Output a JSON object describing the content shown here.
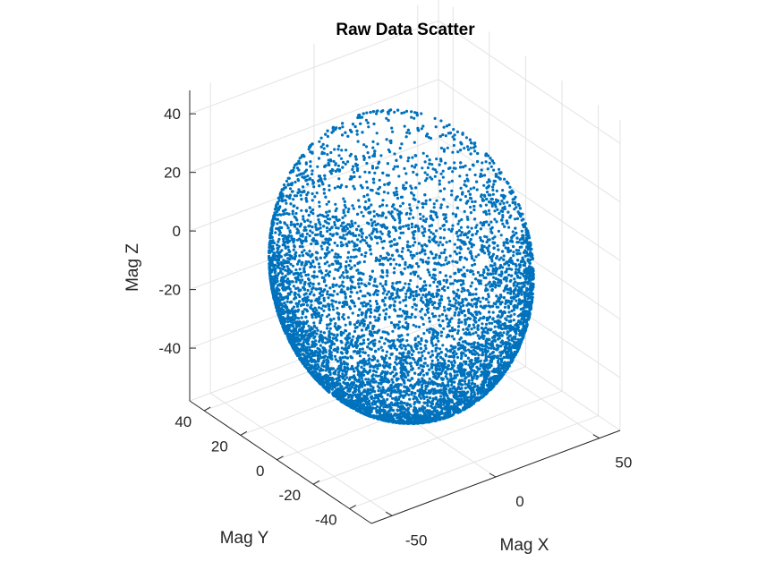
{
  "chart_data": {
    "type": "scatter",
    "subtype": "scatter3",
    "title": "Raw Data Scatter",
    "xlabel": "Mag X",
    "ylabel": "Mag Y",
    "zlabel": "Mag Z",
    "xlim": [
      -60,
      60
    ],
    "ylim": [
      -52,
      48
    ],
    "zlim": [
      -58,
      48
    ],
    "xticks": [
      -50,
      0,
      50
    ],
    "yticks": [
      -40,
      -20,
      0,
      20,
      40
    ],
    "zticks": [
      -40,
      -20,
      0,
      20,
      40
    ],
    "xtick_labels": [
      "-50",
      "0",
      "50"
    ],
    "ytick_labels": [
      "-40",
      "-20",
      "0",
      "20",
      "40"
    ],
    "ztick_labels": [
      "-40",
      "-20",
      "0",
      "20",
      "40"
    ],
    "grid": true,
    "marker_color": "#0072BD",
    "series": [
      {
        "description": "Approximately 30,000 points lying on a sphere of radius about 48 centered near the origin, densely sampled on the lower hemisphere and sparse near the top",
        "center": [
          0,
          0,
          -8
        ],
        "radius": 48,
        "point_count": 30000,
        "z_range": [
          -56,
          42
        ]
      }
    ]
  }
}
